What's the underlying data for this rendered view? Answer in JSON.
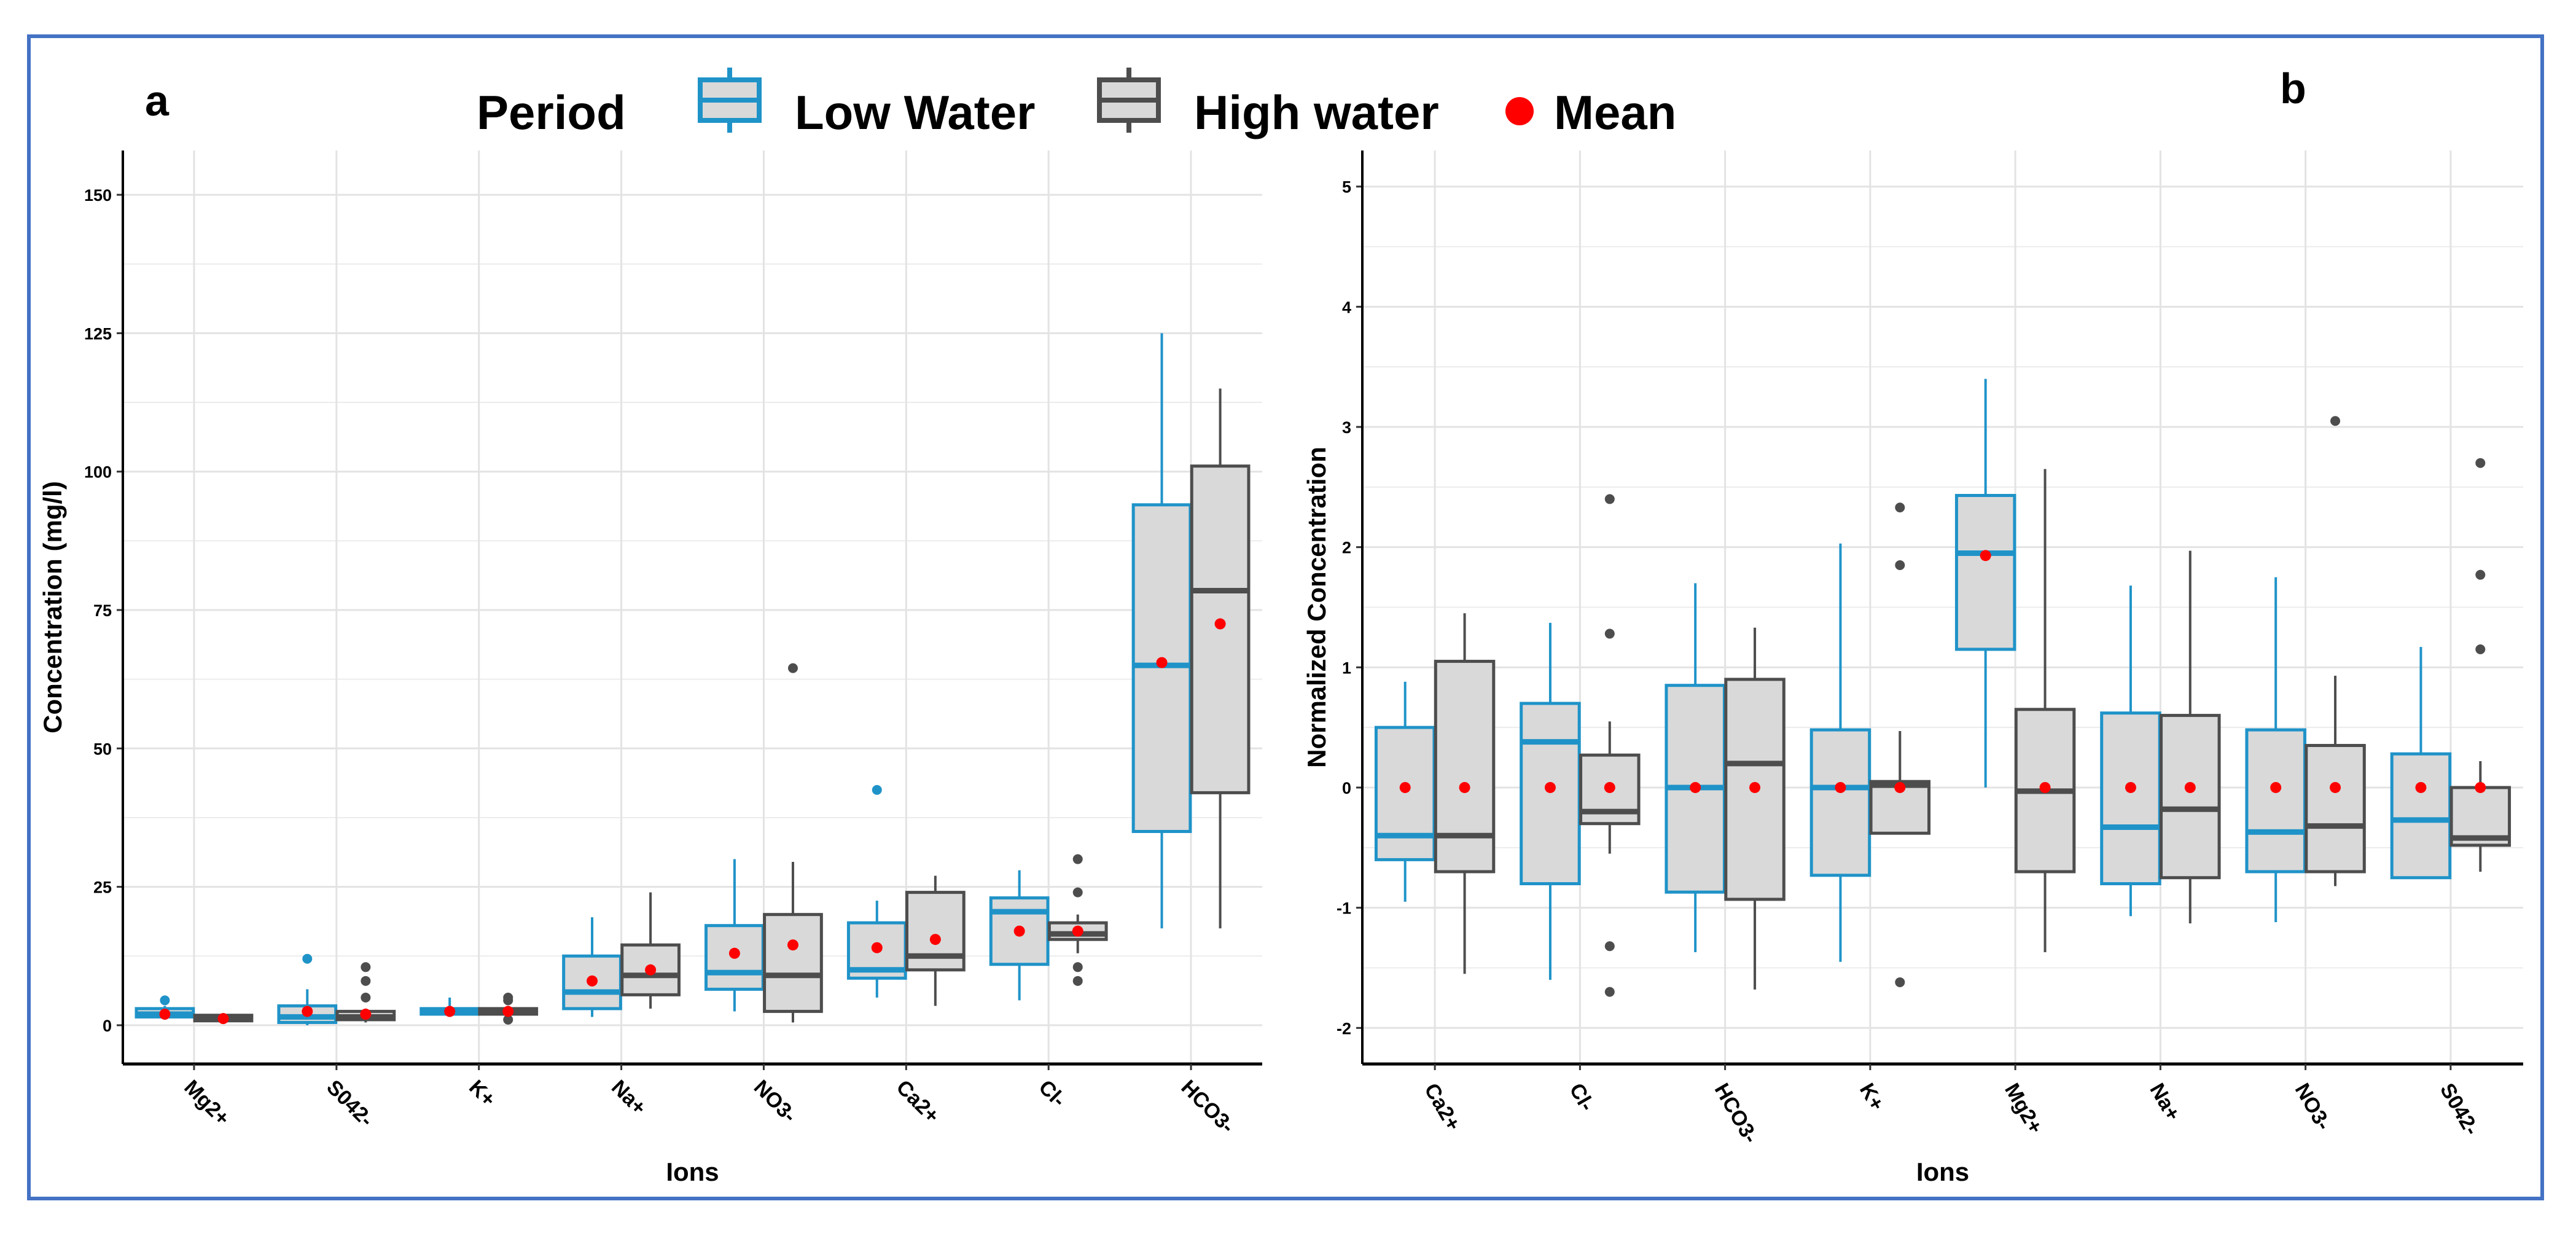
{
  "legend": {
    "title": "Period",
    "low_label": "Low Water",
    "high_label": "High water",
    "mean_label": "Mean"
  },
  "colors": {
    "low_stroke": "#1f93c8",
    "high_stroke": "#4d4d4d",
    "box_fill": "#d9d9d9",
    "mean": "#ff0000",
    "grid": "#e3e3e3",
    "frame": "#4472c4"
  },
  "chart_data": [
    {
      "panel": "a",
      "type": "box",
      "xlabel": "Ions",
      "ylabel": "Concentration (mg/l)",
      "ylim": [
        -7,
        158
      ],
      "yticks": [
        0,
        25,
        50,
        75,
        100,
        125,
        150
      ],
      "ytick_labels": [
        "0",
        "25",
        "50",
        "75",
        "100",
        "125",
        "150"
      ],
      "categories": [
        "Mg2+",
        "S042-",
        "K+",
        "Na+",
        "NO3-",
        "Ca2+",
        "Cl-",
        "HCO3-"
      ],
      "series": [
        {
          "name": "Low Water",
          "boxes": [
            {
              "min": 1,
              "q1": 1.5,
              "median": 2,
              "q3": 3,
              "max": 3.5,
              "mean": 2,
              "outliers": [
                4.5
              ]
            },
            {
              "min": 0,
              "q1": 0.5,
              "median": 1.5,
              "q3": 3.5,
              "max": 6.5,
              "mean": 2.5,
              "outliers": [
                12
              ]
            },
            {
              "min": 1.5,
              "q1": 2,
              "median": 2.5,
              "q3": 3,
              "max": 5,
              "mean": 2.5,
              "outliers": []
            },
            {
              "min": 1.5,
              "q1": 3,
              "median": 6,
              "q3": 12.5,
              "max": 19.5,
              "mean": 8,
              "outliers": []
            },
            {
              "min": 2.5,
              "q1": 6.5,
              "median": 9.5,
              "q3": 18,
              "max": 30,
              "mean": 13,
              "outliers": []
            },
            {
              "min": 5,
              "q1": 8.5,
              "median": 10,
              "q3": 18.5,
              "max": 22.5,
              "mean": 14,
              "outliers": [
                42.5
              ]
            },
            {
              "min": 4.5,
              "q1": 11,
              "median": 20.5,
              "q3": 23,
              "max": 28,
              "mean": 17,
              "outliers": []
            },
            {
              "min": 17.5,
              "q1": 35,
              "median": 65,
              "q3": 94,
              "max": 125,
              "mean": 65.5,
              "outliers": []
            }
          ]
        },
        {
          "name": "High water",
          "boxes": [
            {
              "min": 0.5,
              "q1": 0.8,
              "median": 1.2,
              "q3": 1.8,
              "max": 2.2,
              "mean": 1.2,
              "outliers": []
            },
            {
              "min": 0.5,
              "q1": 1,
              "median": 1.5,
              "q3": 2.5,
              "max": 3,
              "mean": 2,
              "outliers": [
                5,
                8,
                10.5
              ]
            },
            {
              "min": 1.5,
              "q1": 2,
              "median": 2.5,
              "q3": 3,
              "max": 3.5,
              "mean": 2.5,
              "outliers": [
                1,
                4.5,
                5
              ]
            },
            {
              "min": 3,
              "q1": 5.5,
              "median": 9,
              "q3": 14.5,
              "max": 24,
              "mean": 10,
              "outliers": []
            },
            {
              "min": 0.5,
              "q1": 2.5,
              "median": 9,
              "q3": 20,
              "max": 29.5,
              "mean": 14.5,
              "outliers": [
                64.5
              ]
            },
            {
              "min": 3.5,
              "q1": 10,
              "median": 12.5,
              "q3": 24,
              "max": 27,
              "mean": 15.5,
              "outliers": []
            },
            {
              "min": 13,
              "q1": 15.5,
              "median": 16.5,
              "q3": 18.5,
              "max": 20,
              "mean": 17,
              "outliers": [
                8,
                10.5,
                24,
                30
              ]
            },
            {
              "min": 17.5,
              "q1": 42,
              "median": 78.5,
              "q3": 101,
              "max": 115,
              "mean": 72.5,
              "outliers": []
            }
          ]
        }
      ]
    },
    {
      "panel": "b",
      "type": "box",
      "xlabel": "Ions",
      "ylabel": "Normalized Concentration",
      "ylim": [
        -2.3,
        5.3
      ],
      "yticks": [
        -2,
        -1,
        0,
        1,
        2,
        3,
        4,
        5
      ],
      "ytick_labels": [
        "-2",
        "-1",
        "0",
        "1",
        "2",
        "3",
        "4",
        "5"
      ],
      "categories": [
        "Ca2+",
        "Cl-",
        "HCO3-",
        "K+",
        "Mg2+",
        "Na+",
        "NO3-",
        "S042-"
      ],
      "series": [
        {
          "name": "Low Water",
          "boxes": [
            {
              "min": -0.95,
              "q1": -0.6,
              "median": -0.4,
              "q3": 0.5,
              "max": 0.88,
              "mean": 0,
              "outliers": []
            },
            {
              "min": -1.6,
              "q1": -0.8,
              "median": 0.38,
              "q3": 0.7,
              "max": 1.37,
              "mean": 0,
              "outliers": []
            },
            {
              "min": -1.37,
              "q1": -0.87,
              "median": 0,
              "q3": 0.85,
              "max": 1.7,
              "mean": 0,
              "outliers": []
            },
            {
              "min": -1.45,
              "q1": -0.73,
              "median": 0,
              "q3": 0.48,
              "max": 2.03,
              "mean": 0,
              "outliers": []
            },
            {
              "min": 0,
              "q1": 1.15,
              "median": 1.95,
              "q3": 2.43,
              "max": 3.4,
              "mean": 1.93,
              "outliers": []
            },
            {
              "min": -1.07,
              "q1": -0.8,
              "median": -0.33,
              "q3": 0.62,
              "max": 1.68,
              "mean": 0,
              "outliers": []
            },
            {
              "min": -1.12,
              "q1": -0.7,
              "median": -0.37,
              "q3": 0.48,
              "max": 1.75,
              "mean": 0,
              "outliers": []
            },
            {
              "min": -0.75,
              "q1": -0.75,
              "median": -0.27,
              "q3": 0.28,
              "max": 1.17,
              "mean": 0,
              "outliers": []
            }
          ]
        },
        {
          "name": "High water",
          "boxes": [
            {
              "min": -1.55,
              "q1": -0.7,
              "median": -0.4,
              "q3": 1.05,
              "max": 1.45,
              "mean": 0,
              "outliers": []
            },
            {
              "min": -0.55,
              "q1": -0.3,
              "median": -0.2,
              "q3": 0.27,
              "max": 0.55,
              "mean": 0,
              "outliers": [
                -1.7,
                -1.32,
                1.28,
                2.4
              ]
            },
            {
              "min": -1.68,
              "q1": -0.93,
              "median": 0.2,
              "q3": 0.9,
              "max": 1.33,
              "mean": 0,
              "outliers": []
            },
            {
              "min": -0.38,
              "q1": -0.38,
              "median": 0.02,
              "q3": 0.05,
              "max": 0.47,
              "mean": 0,
              "outliers": [
                -1.62,
                1.85,
                2.33
              ]
            },
            {
              "min": -1.37,
              "q1": -0.7,
              "median": -0.03,
              "q3": 0.65,
              "max": 2.65,
              "mean": 0,
              "outliers": []
            },
            {
              "min": -1.13,
              "q1": -0.75,
              "median": -0.18,
              "q3": 0.6,
              "max": 1.97,
              "mean": 0,
              "outliers": []
            },
            {
              "min": -0.82,
              "q1": -0.7,
              "median": -0.32,
              "q3": 0.35,
              "max": 0.93,
              "mean": 0,
              "outliers": [
                3.05
              ]
            },
            {
              "min": -0.7,
              "q1": -0.48,
              "median": -0.42,
              "q3": 0,
              "max": 0.22,
              "mean": 0,
              "outliers": [
                1.15,
                1.77,
                2.7
              ]
            }
          ]
        }
      ]
    }
  ]
}
